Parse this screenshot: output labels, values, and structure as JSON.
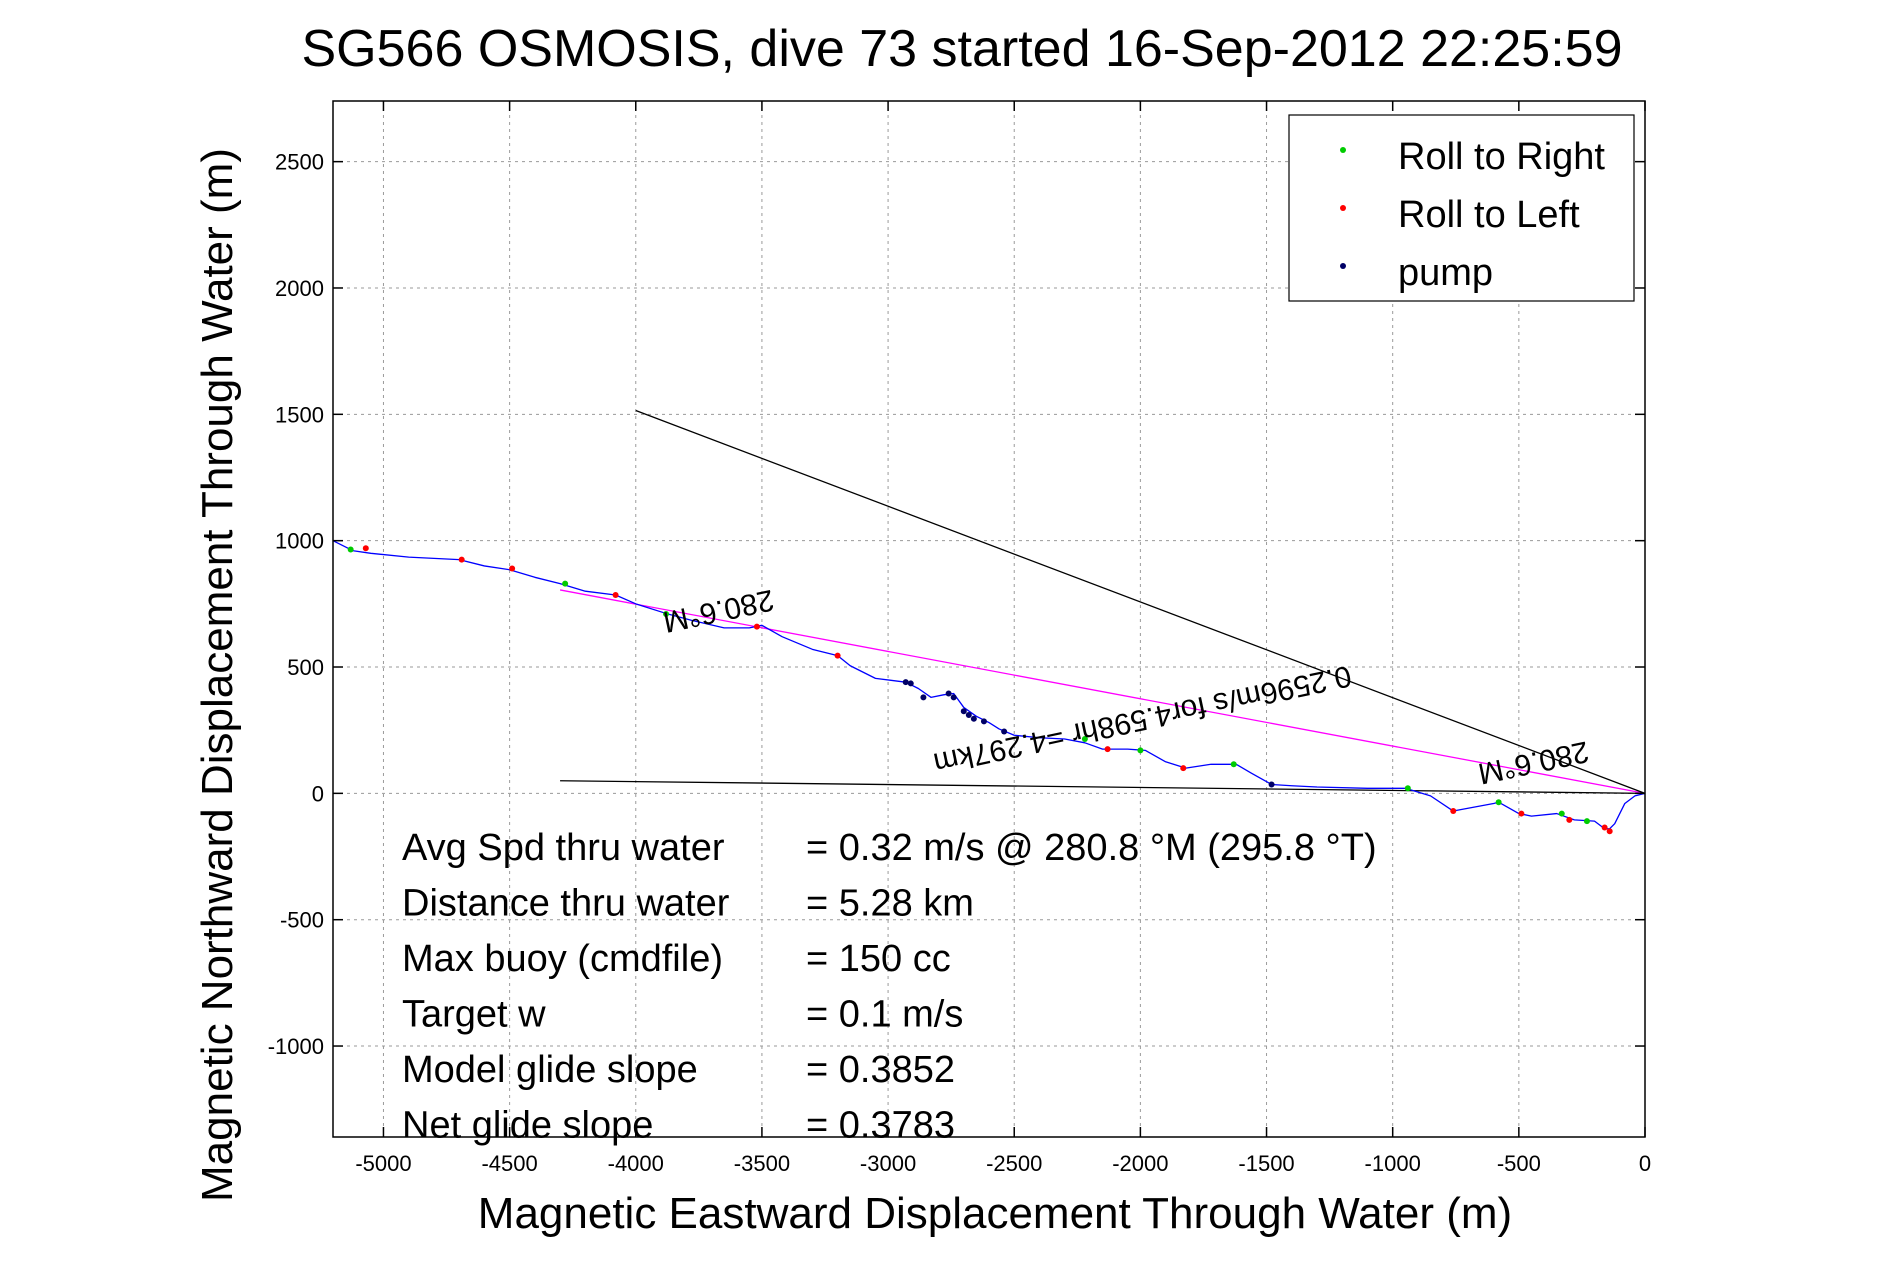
{
  "chart_data": {
    "type": "line",
    "title": "SG566 OSMOSIS, dive 73 started 16-Sep-2012 22:25:59",
    "xlabel": "Magnetic Eastward Displacement Through Water (m)",
    "ylabel": "Magnetic Northward Displacement Through Water (m)",
    "xlim": [
      -5200,
      0
    ],
    "ylim": [
      -1360,
      2740
    ],
    "xticks": [
      -5000,
      -4500,
      -4000,
      -3500,
      -3000,
      -2500,
      -2000,
      -1500,
      -1000,
      -500,
      0
    ],
    "yticks": [
      -1000,
      -500,
      0,
      500,
      1000,
      1500,
      2000,
      2500
    ],
    "grid": true,
    "legend_position": "top-right",
    "legend": [
      {
        "label": "Roll to Right",
        "color": "#00cc00"
      },
      {
        "label": "Roll to Left",
        "color": "#ff0000"
      },
      {
        "label": "pump",
        "color": "#000066"
      }
    ],
    "track": {
      "color": "#0000ff",
      "points": [
        [
          -5200,
          1000
        ],
        [
          -5120,
          960
        ],
        [
          -5050,
          950
        ],
        [
          -4900,
          935
        ],
        [
          -4700,
          925
        ],
        [
          -4600,
          900
        ],
        [
          -4500,
          885
        ],
        [
          -4400,
          855
        ],
        [
          -4300,
          830
        ],
        [
          -4200,
          800
        ],
        [
          -4080,
          785
        ],
        [
          -4000,
          750
        ],
        [
          -3880,
          712
        ],
        [
          -3780,
          685
        ],
        [
          -3650,
          655
        ],
        [
          -3550,
          655
        ],
        [
          -3500,
          665
        ],
        [
          -3420,
          620
        ],
        [
          -3300,
          570
        ],
        [
          -3200,
          545
        ],
        [
          -3150,
          505
        ],
        [
          -3050,
          455
        ],
        [
          -2930,
          440
        ],
        [
          -2880,
          415
        ],
        [
          -2830,
          380
        ],
        [
          -2780,
          390
        ],
        [
          -2740,
          395
        ],
        [
          -2700,
          340
        ],
        [
          -2650,
          305
        ],
        [
          -2600,
          280
        ],
        [
          -2560,
          255
        ],
        [
          -2500,
          230
        ],
        [
          -2400,
          220
        ],
        [
          -2300,
          215
        ],
        [
          -2220,
          200
        ],
        [
          -2150,
          175
        ],
        [
          -2050,
          175
        ],
        [
          -1980,
          170
        ],
        [
          -1900,
          125
        ],
        [
          -1820,
          100
        ],
        [
          -1720,
          115
        ],
        [
          -1620,
          115
        ],
        [
          -1560,
          80
        ],
        [
          -1480,
          35
        ],
        [
          -1400,
          30
        ],
        [
          -1300,
          25
        ],
        [
          -1100,
          20
        ],
        [
          -950,
          20
        ],
        [
          -850,
          -10
        ],
        [
          -760,
          -70
        ],
        [
          -680,
          -55
        ],
        [
          -600,
          -40
        ],
        [
          -580,
          -35
        ],
        [
          -500,
          -80
        ],
        [
          -450,
          -90
        ],
        [
          -350,
          -80
        ],
        [
          -280,
          -105
        ],
        [
          -200,
          -110
        ],
        [
          -160,
          -140
        ],
        [
          -140,
          -140
        ],
        [
          -120,
          -120
        ],
        [
          -80,
          -40
        ],
        [
          -40,
          -10
        ],
        [
          0,
          0
        ]
      ]
    },
    "markers": {
      "roll_right": [
        [
          -5130,
          965
        ],
        [
          -4280,
          830
        ],
        [
          -3880,
          710
        ],
        [
          -2220,
          215
        ],
        [
          -2000,
          170
        ],
        [
          -1630,
          115
        ],
        [
          -940,
          20
        ],
        [
          -580,
          -35
        ],
        [
          -330,
          -80
        ],
        [
          -230,
          -110
        ]
      ],
      "roll_left": [
        [
          -5070,
          970
        ],
        [
          -4690,
          925
        ],
        [
          -4490,
          890
        ],
        [
          -4080,
          785
        ],
        [
          -3520,
          660
        ],
        [
          -3200,
          545
        ],
        [
          -2130,
          175
        ],
        [
          -1830,
          100
        ],
        [
          -760,
          -70
        ],
        [
          -490,
          -80
        ],
        [
          -300,
          -105
        ],
        [
          -160,
          -135
        ],
        [
          -140,
          -150
        ]
      ],
      "pump": [
        [
          -2930,
          440
        ],
        [
          -2910,
          435
        ],
        [
          -2860,
          380
        ],
        [
          -2760,
          395
        ],
        [
          -2740,
          380
        ],
        [
          -2700,
          325
        ],
        [
          -2680,
          310
        ],
        [
          -2660,
          295
        ],
        [
          -2620,
          285
        ],
        [
          -2540,
          245
        ],
        [
          -1480,
          35
        ]
      ]
    },
    "reference_lines": [
      {
        "color": "#ff00ff",
        "points": [
          [
            -4300,
            805
          ],
          [
            0,
            0
          ]
        ]
      },
      {
        "color": "#000000",
        "points": [
          [
            -4000,
            1515
          ],
          [
            0,
            0
          ]
        ]
      },
      {
        "color": "#000000",
        "points": [
          [
            -4300,
            50
          ],
          [
            0,
            0
          ]
        ]
      }
    ],
    "rotated_annotations": [
      {
        "text": "280.6°M",
        "x": -3680,
        "y": 760,
        "angle": 168
      },
      {
        "text": "0.2596m/s for4.598hr =4.297km",
        "x": -2000,
        "y": 330,
        "angle": 168
      },
      {
        "text": "280.6°M",
        "x": -450,
        "y": 160,
        "angle": 168
      }
    ],
    "stats": [
      {
        "label": "Avg Spd thru water",
        "value": "=  0.32 m/s @ 280.8 °M (295.8 °T)"
      },
      {
        "label": "Distance thru water",
        "value": "=  5.28 km"
      },
      {
        "label": "Max buoy (cmdfile)",
        "value": "= 150 cc"
      },
      {
        "label": "Target w",
        "value": "= 0.1 m/s"
      },
      {
        "label": "Model glide slope",
        "value": "= 0.3852"
      },
      {
        "label": "Net glide slope",
        "value": "= 0.3783"
      }
    ]
  }
}
